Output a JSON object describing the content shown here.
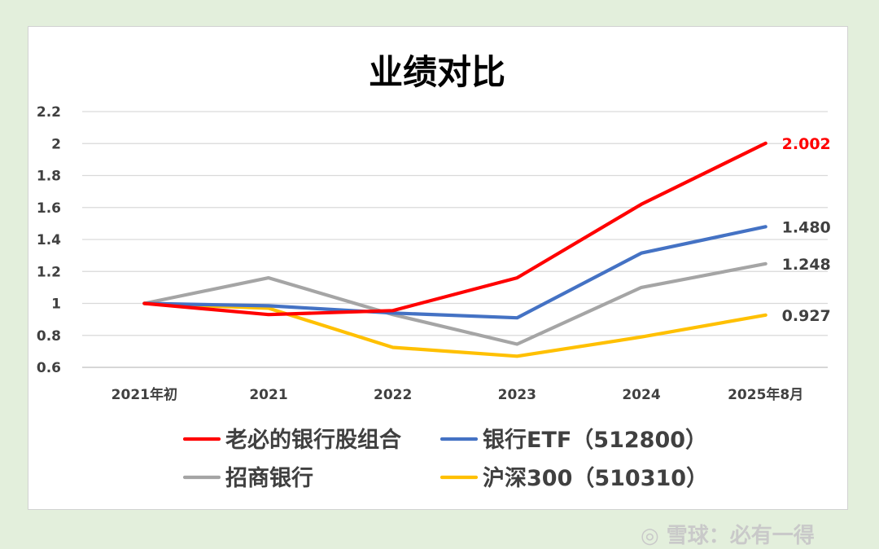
{
  "chart_data": {
    "type": "line",
    "title": "业绩对比",
    "categories": [
      "2021年初",
      "2021",
      "2022",
      "2023",
      "2024",
      "2025年8月"
    ],
    "ylim": [
      0.6,
      2.2
    ],
    "yticks": [
      "2.2",
      "2",
      "1.8",
      "1.6",
      "1.4",
      "1.2",
      "1",
      "0.8",
      "0.6"
    ],
    "ytick_values": [
      2.2,
      2.0,
      1.8,
      1.6,
      1.4,
      1.2,
      1.0,
      0.8,
      0.6
    ],
    "grid": true,
    "legend_position": "bottom",
    "series": [
      {
        "name": "老必的银行股组合",
        "color": "#ff0000",
        "values": [
          1.0,
          0.93,
          0.955,
          1.16,
          1.62,
          2.002
        ],
        "end_label": "2.002",
        "end_label_color": "#ff0000"
      },
      {
        "name": "银行ETF（512800）",
        "color": "#4472c4",
        "values": [
          1.0,
          0.985,
          0.94,
          0.91,
          1.315,
          1.48
        ],
        "end_label": "1.480",
        "end_label_color": "#404040"
      },
      {
        "name": "招商银行",
        "color": "#a5a5a5",
        "values": [
          1.0,
          1.16,
          0.93,
          0.745,
          1.1,
          1.248
        ],
        "end_label": "1.248",
        "end_label_color": "#404040"
      },
      {
        "name": "沪深300（510310）",
        "color": "#ffc000",
        "values": [
          1.0,
          0.97,
          0.725,
          0.67,
          0.79,
          0.927
        ],
        "end_label": "0.927",
        "end_label_color": "#404040"
      }
    ]
  },
  "watermark": "雪球：必有一得",
  "watermark_icon": "wechat-icon"
}
